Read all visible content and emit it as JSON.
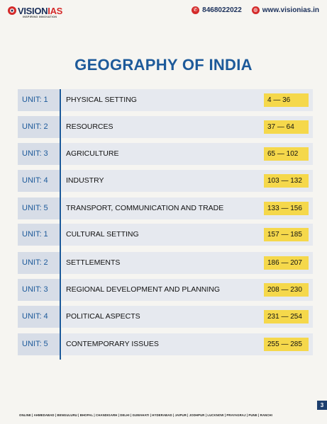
{
  "header": {
    "logo_vision": "VISION",
    "logo_ias": "IAS",
    "logo_tagline": "INSPIRING INNOVATION",
    "phone": "8468022022",
    "website": "www.visionias.in"
  },
  "title": "GEOGRAPHY OF INDIA",
  "toc": [
    {
      "unit": "UNIT: 1",
      "topic": "PHYSICAL SETTING",
      "pages": "4 — 36"
    },
    {
      "unit": "UNIT: 2",
      "topic": "RESOURCES",
      "pages": "37 — 64"
    },
    {
      "unit": "UNIT: 3",
      "topic": "AGRICULTURE",
      "pages": "65 — 102"
    },
    {
      "unit": "UNIT: 4",
      "topic": "INDUSTRY",
      "pages": "103 — 132"
    },
    {
      "unit": "UNIT: 5",
      "topic": "TRANSPORT, COMMUNICATION AND TRADE",
      "pages": "133 — 156"
    },
    {
      "unit": "UNIT: 1",
      "topic": "CULTURAL SETTING",
      "pages": "157 — 185"
    },
    {
      "unit": "UNIT: 2",
      "topic": "SETTLEMENTS",
      "pages": "186 — 207"
    },
    {
      "unit": "UNIT: 3",
      "topic": "REGIONAL DEVELOPMENT AND PLANNING",
      "pages": "208 — 230"
    },
    {
      "unit": "UNIT: 4",
      "topic": "POLITICAL ASPECTS",
      "pages": "231 — 254"
    },
    {
      "unit": "UNIT: 5",
      "topic": "CONTEMPORARY ISSUES",
      "pages": "255 — 285"
    }
  ],
  "footer": {
    "cities": "ONLINE | AHMEDABAD | BENGULURU | BHOPAL | CHANDIGARH | DELHI | GUWAHATI | HYDERABAD | JAIPUR | JODHPUR | LUCKNOW | PRAYAGRAJ | PUNE | RANCHI",
    "page_number": "3"
  },
  "colors": {
    "title": "#1d5a9a",
    "unit_bg": "#d7dde7",
    "topic_bg": "#e6e9ef",
    "pages_highlight": "#f5d84b",
    "accent_red": "#d42a2a"
  },
  "icons": [
    "vision-ias-logo-icon",
    "phone-icon",
    "globe-icon"
  ]
}
